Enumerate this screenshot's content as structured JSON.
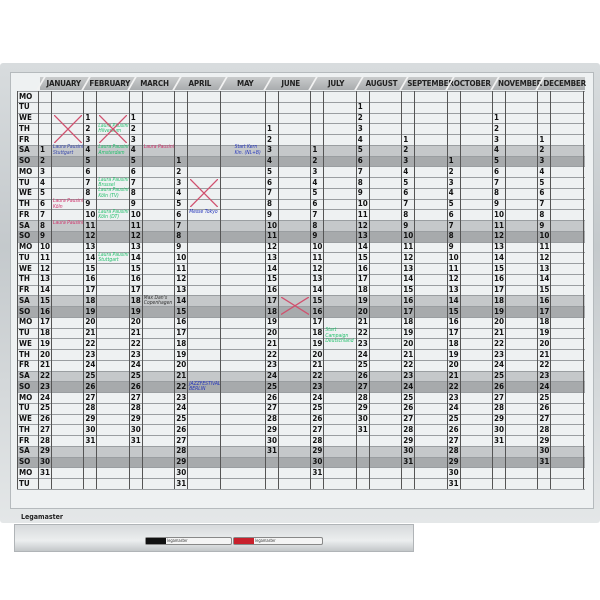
{
  "brand": "Legamaster",
  "weekdays": [
    "MO",
    "TU",
    "WE",
    "TH",
    "FR",
    "SA",
    "SO"
  ],
  "row_count": 37,
  "months": [
    "JANUARY",
    "FEBRUARY",
    "MARCH",
    "APRIL",
    "MAY",
    "JUNE",
    "JULY",
    "AUGUST",
    "SEPTEMBER",
    "OCTOBER",
    "NOVEMBER",
    "DECEMBER"
  ],
  "day_strips": [
    {
      "month": 0,
      "start_weekday_row": 5,
      "days": 31
    },
    {
      "month": 1,
      "start_weekday_row": 2,
      "days": 31
    },
    {
      "month": 2,
      "start_weekday_row": 2,
      "days": 31
    },
    {
      "month": 3,
      "start_weekday_row": 6,
      "days": 31
    },
    {
      "month": 5,
      "start_weekday_row": 3,
      "days": 31
    },
    {
      "month": 6,
      "start_weekday_row": 5,
      "days": 31
    },
    {
      "month": 7,
      "start_weekday_row": 1,
      "days": 31
    },
    {
      "month": 8,
      "start_weekday_row": 4,
      "days": 31
    },
    {
      "month": 9,
      "start_weekday_row": 6,
      "days": 31
    },
    {
      "month": 10,
      "start_weekday_row": 2,
      "days": 31
    },
    {
      "month": 11,
      "start_weekday_row": 4,
      "days": 31
    }
  ],
  "weekend_colors": {
    "SA": "#c5c8ca",
    "SO": "#a7aaac"
  },
  "notes": [
    {
      "month": 1,
      "row": 3,
      "text": "Laura Pausini Hilversum",
      "color": "#1fbf6a"
    },
    {
      "month": 1,
      "row": 5,
      "text": "Laura Pausini Amsterdam",
      "color": "#1fbf6a"
    },
    {
      "month": 1,
      "row": 8,
      "text": "Laura Pausini Brussel",
      "color": "#1fbf6a"
    },
    {
      "month": 1,
      "row": 9,
      "text": "Laura Pausini Köln (TV)",
      "color": "#1fbf6a"
    },
    {
      "month": 1,
      "row": 11,
      "text": "Laura Pausini Köln (DT)",
      "color": "#1fbf6a"
    },
    {
      "month": 1,
      "row": 15,
      "text": "Laura Pausini Stuttgart",
      "color": "#1fbf6a"
    },
    {
      "month": 0,
      "row": 5,
      "text": "Laura Pausini Stuttgart",
      "color": "#3344aa"
    },
    {
      "month": 0,
      "row": 10,
      "text": "Laura Pausini Köln",
      "color": "#d0306a"
    },
    {
      "month": 0,
      "row": 12,
      "text": "Laura Pausini",
      "color": "#d0306a"
    },
    {
      "month": 2,
      "row": 5,
      "text": "Laura Pausini",
      "color": "#d0306a"
    },
    {
      "month": 2,
      "row": 19,
      "text": "Max Dan's Copenhagen",
      "color": "#333333"
    },
    {
      "month": 4,
      "row": 5,
      "text": "Start Kern Kin. (NL+B)",
      "color": "#2233bb"
    },
    {
      "month": 3,
      "row": 11,
      "text": "Messe Tokyo",
      "color": "#2233bb"
    },
    {
      "month": 3,
      "row": 27,
      "text": "JAZZFESTIVAL BERLIN",
      "color": "#2233bb"
    },
    {
      "month": 6,
      "row": 22,
      "text": "Start Campaign Deutschland",
      "color": "#1fbf6a"
    }
  ],
  "cross_marks": [
    {
      "month": 0,
      "row_from": 2,
      "row_to": 4
    },
    {
      "month": 1,
      "row_from": 2,
      "row_to": 4
    },
    {
      "month": 3,
      "row_from": 8,
      "row_to": 10
    },
    {
      "month": 5,
      "row_from": 19,
      "row_to": 20
    }
  ],
  "pens": [
    "legamaster",
    "legamaster"
  ]
}
